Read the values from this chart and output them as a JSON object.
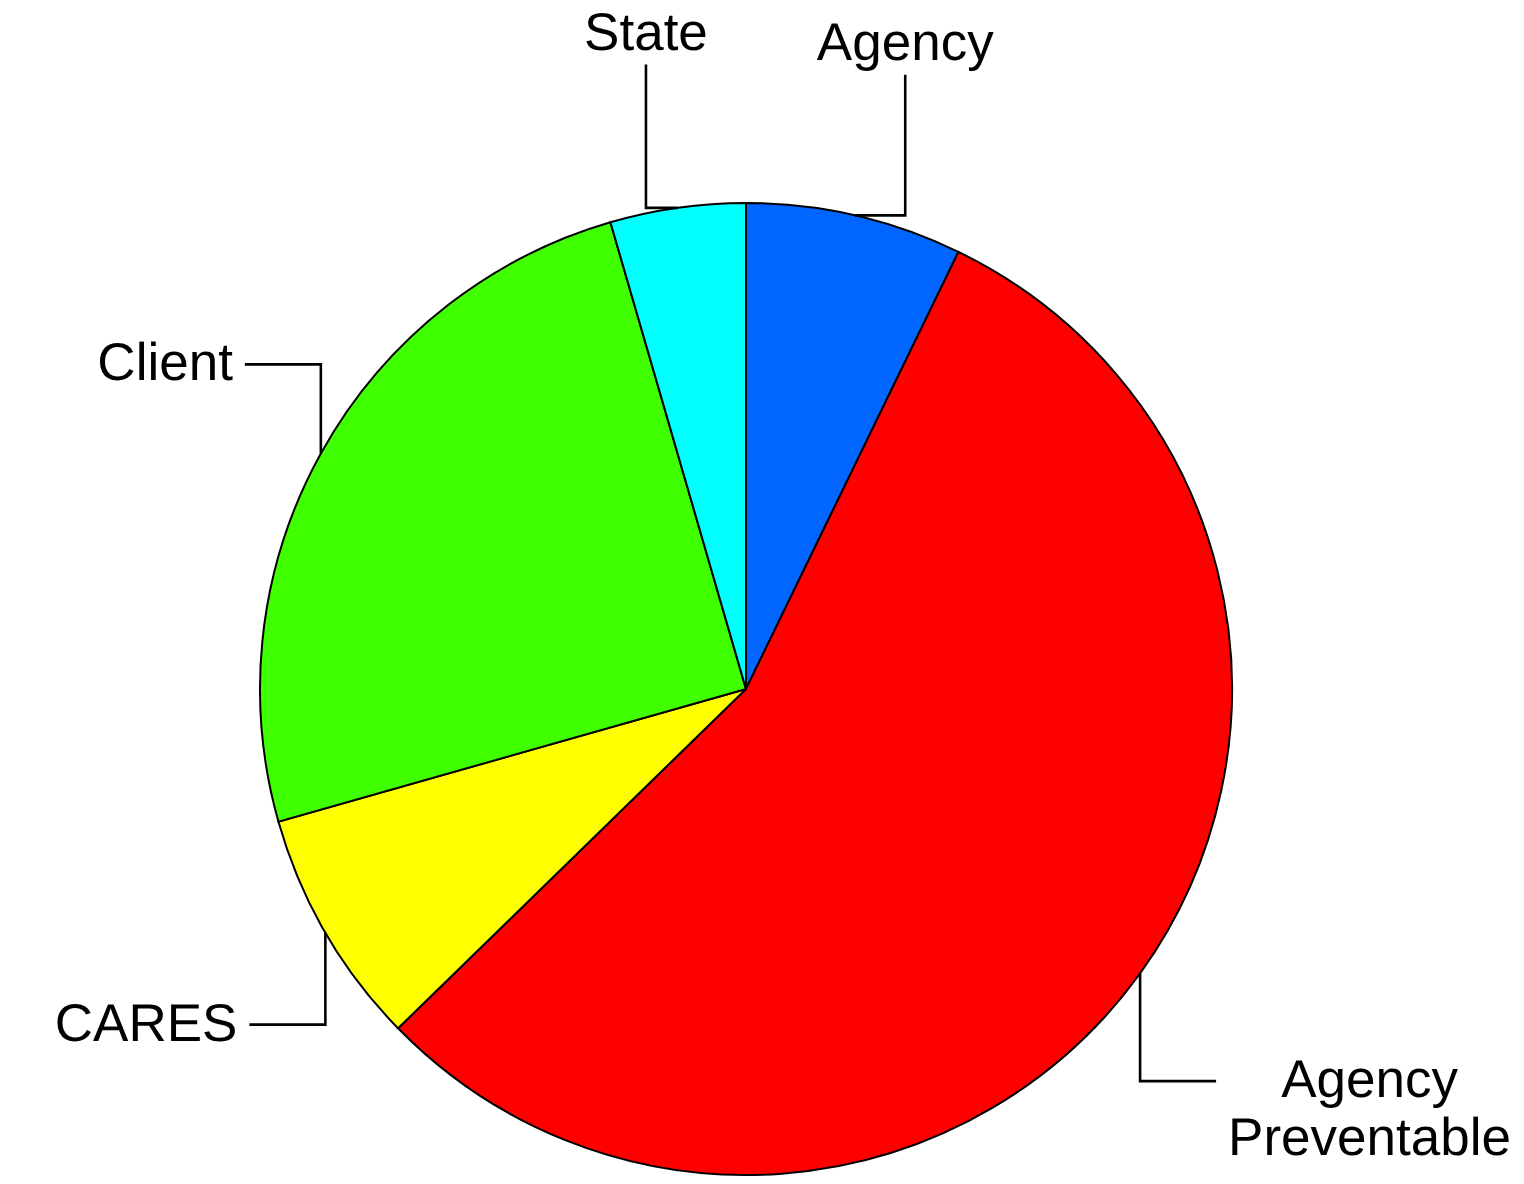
{
  "chart_data": {
    "type": "pie",
    "categories": [
      "Agency",
      "Agency Preventable",
      "CARES",
      "Client",
      "State"
    ],
    "values": [
      7.2,
      55.5,
      7.9,
      24.9,
      4.5
    ],
    "colors": [
      "#0066ff",
      "#ff0000",
      "#ffff00",
      "#40ff00",
      "#00ffff"
    ]
  }
}
